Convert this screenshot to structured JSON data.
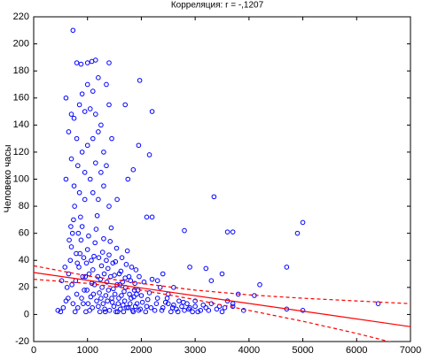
{
  "chart_data": {
    "type": "scatter",
    "title": "Корреляция: r =  -,1207",
    "y_label": "Человеко часы",
    "color": "#0000ff",
    "xlim": [
      0,
      7000
    ],
    "ylim": [
      -20,
      220
    ],
    "xticks": [
      0,
      1000,
      2000,
      3000,
      4000,
      5000,
      6000,
      7000
    ],
    "yticks": [
      -20,
      0,
      20,
      40,
      60,
      80,
      100,
      120,
      140,
      160,
      180,
      200,
      220
    ],
    "x": [
      730,
      800,
      880,
      1000,
      1080,
      1150,
      1400,
      1970,
      1200,
      1000,
      900,
      600,
      1100,
      1350,
      700,
      750,
      850,
      950,
      1050,
      1150,
      1250,
      1400,
      1450,
      1700,
      2200,
      1950,
      2150,
      1850,
      650,
      800,
      900,
      1000,
      1100,
      1200,
      1300,
      1350,
      700,
      820,
      950,
      1050,
      1150,
      1250,
      1300,
      600,
      750,
      850,
      950,
      1100,
      1200,
      1400,
      1550,
      1750,
      2100,
      2200,
      3350,
      2800,
      3600,
      3700,
      5000,
      4900,
      4700,
      4200,
      6400,
      5000,
      4700,
      3800,
      3700,
      3500,
      3300,
      3200,
      2900,
      3000,
      2600,
      2500,
      2400,
      2300,
      500,
      550,
      600,
      620,
      650,
      680,
      700,
      720,
      740,
      760,
      780,
      800,
      820,
      840,
      860,
      880,
      900,
      920,
      940,
      960,
      980,
      1000,
      1020,
      1040,
      1060,
      1080,
      1100,
      1120,
      1140,
      1160,
      1180,
      1200,
      1220,
      1240,
      1260,
      1280,
      1300,
      1320,
      1340,
      1360,
      1380,
      1400,
      1420,
      1440,
      1460,
      1480,
      1500,
      1520,
      1540,
      1560,
      1580,
      1600,
      1620,
      1640,
      1660,
      1680,
      1700,
      1720,
      1740,
      1760,
      1780,
      1800,
      1820,
      1840,
      1860,
      1880,
      1900,
      1920,
      1940,
      1960,
      1980,
      2000,
      2050,
      2100,
      2150,
      2200,
      2250,
      2300,
      2350,
      2400,
      2450,
      2500,
      2550,
      2600,
      2650,
      2700,
      2750,
      2800,
      2850,
      2900,
      2950,
      3000,
      3100,
      3200,
      3300,
      3400,
      3500,
      3600,
      3700,
      3900,
      4100,
      450,
      520,
      580,
      640,
      660,
      690,
      710,
      730,
      770,
      790,
      810,
      830,
      870,
      890,
      910,
      930,
      970,
      990,
      1010,
      1030,
      1070,
      1090,
      1110,
      1130,
      1170,
      1190,
      1210,
      1230,
      1250,
      1270,
      1290,
      1310,
      1330,
      1350,
      1370,
      1390,
      1410,
      1430,
      1450,
      1470,
      1490,
      1510,
      1530,
      1550,
      1570,
      1590,
      1610,
      1630,
      1650,
      1670,
      1690,
      1710,
      1730,
      1770,
      1790,
      1810,
      1850,
      1870,
      1890,
      1910,
      1950,
      2020,
      2080,
      2120,
      2180,
      2280,
      2380,
      2480,
      2580,
      2680,
      2780,
      2880,
      3050,
      3150,
      3250,
      3450,
      3550
    ],
    "values": [
      210,
      186,
      185,
      186,
      187,
      188,
      186,
      173,
      175,
      170,
      163,
      160,
      165,
      170,
      148,
      145,
      155,
      150,
      152,
      148,
      140,
      155,
      130,
      155,
      150,
      125,
      118,
      107,
      135,
      130,
      120,
      125,
      130,
      135,
      120,
      110,
      115,
      110,
      105,
      100,
      112,
      105,
      95,
      100,
      95,
      90,
      85,
      90,
      85,
      80,
      85,
      100,
      72,
      72,
      87,
      62,
      61,
      61,
      68,
      60,
      35,
      22,
      8,
      3,
      4,
      15,
      8,
      30,
      25,
      34,
      35,
      10,
      20,
      8,
      30,
      25,
      2,
      5,
      10,
      20,
      30,
      40,
      50,
      60,
      70,
      80,
      25,
      15,
      5,
      35,
      45,
      55,
      65,
      8,
      18,
      28,
      38,
      48,
      58,
      3,
      13,
      23,
      33,
      43,
      53,
      63,
      73,
      6,
      16,
      26,
      36,
      46,
      56,
      4,
      14,
      24,
      34,
      44,
      54,
      64,
      9,
      19,
      29,
      39,
      49,
      2,
      12,
      22,
      32,
      42,
      7,
      17,
      27,
      37,
      47,
      5,
      15,
      25,
      35,
      3,
      13,
      23,
      33,
      8,
      18,
      28,
      4,
      14,
      24,
      6,
      16,
      26,
      3,
      12,
      20,
      5,
      9,
      15,
      2,
      7,
      4,
      10,
      6,
      3,
      8,
      5,
      2,
      6,
      3,
      5,
      8,
      4,
      2,
      10,
      6,
      3,
      14,
      3,
      25,
      35,
      12,
      55,
      65,
      22,
      8,
      2,
      45,
      38,
      60,
      72,
      12,
      28,
      42,
      2,
      18,
      8,
      30,
      40,
      5,
      15,
      22,
      10,
      28,
      42,
      2,
      12,
      20,
      8,
      30,
      2,
      40,
      10,
      18,
      3,
      28,
      12,
      38,
      6,
      15,
      2,
      22,
      8,
      30,
      4,
      14,
      24,
      2,
      10,
      20,
      5,
      28,
      8,
      12,
      2,
      18,
      6,
      15,
      3,
      9,
      2,
      11,
      5,
      8,
      3,
      12,
      5,
      2,
      9,
      4,
      2,
      7,
      3,
      6,
      5
    ],
    "regression": {
      "color": "#ff0000",
      "x": [
        0,
        7000
      ],
      "values": [
        31,
        -9
      ]
    },
    "upper_band": {
      "color": "#ff0000",
      "x": [
        0,
        1000,
        2000,
        3000,
        4000,
        5000,
        6000,
        7000
      ],
      "values": [
        36,
        28.5,
        23,
        18,
        14.5,
        12,
        10,
        8
      ]
    },
    "lower_band": {
      "color": "#ff0000",
      "x": [
        0,
        1000,
        2000,
        3000,
        4000,
        5000,
        6000,
        7000
      ],
      "values": [
        26,
        23,
        18,
        11,
        3,
        -5,
        -14,
        -24
      ]
    }
  }
}
